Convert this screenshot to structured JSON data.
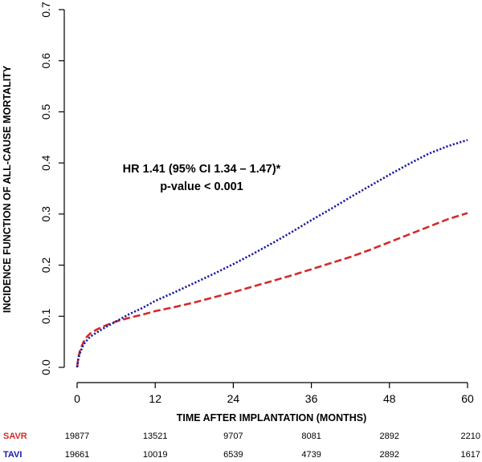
{
  "chart_data": {
    "type": "line",
    "title": "",
    "xlabel": "TIME AFTER IMPLANTATION (MONTHS)",
    "ylabel": "INCIDENCE FUNCTION OF ALL-CAUSE MORTALITY",
    "xlim": [
      0,
      60
    ],
    "ylim": [
      0,
      0.7
    ],
    "x_ticks": [
      0,
      12,
      24,
      36,
      48,
      60
    ],
    "x_tick_labels": [
      "0",
      "12",
      "24",
      "36",
      "48",
      "60"
    ],
    "y_ticks": [
      0,
      0.1,
      0.2,
      0.3,
      0.4,
      0.5,
      0.6,
      0.7
    ],
    "y_tick_labels": [
      "0.0",
      "0.1",
      "0.2",
      "0.3",
      "0.4",
      "0.5",
      "0.6",
      "0.7"
    ],
    "grid": false,
    "annotation": [
      "HR 1.41 (95% CI 1.34 – 1.47)*",
      "p-value < 0.001"
    ],
    "series": [
      {
        "name": "SAVR",
        "color": "#d42a2a",
        "style": "dashed",
        "x": [
          0,
          0.2,
          0.5,
          1,
          1.5,
          2,
          3,
          4,
          5,
          6,
          8,
          10,
          12,
          15,
          18,
          21,
          24,
          27,
          30,
          33,
          36,
          39,
          42,
          45,
          48,
          51,
          54,
          57,
          60
        ],
        "y": [
          0,
          0.02,
          0.035,
          0.05,
          0.06,
          0.066,
          0.074,
          0.08,
          0.085,
          0.09,
          0.097,
          0.103,
          0.11,
          0.118,
          0.127,
          0.137,
          0.147,
          0.158,
          0.169,
          0.18,
          0.192,
          0.204,
          0.216,
          0.23,
          0.245,
          0.26,
          0.275,
          0.29,
          0.302
        ]
      },
      {
        "name": "TAVI",
        "color": "#1a1aa8",
        "style": "dotted",
        "x": [
          0,
          0.2,
          0.5,
          1,
          1.5,
          2,
          3,
          4,
          5,
          6,
          8,
          10,
          12,
          15,
          18,
          21,
          24,
          27,
          30,
          33,
          36,
          39,
          42,
          45,
          48,
          51,
          54,
          57,
          60
        ],
        "y": [
          0,
          0.018,
          0.03,
          0.045,
          0.053,
          0.06,
          0.068,
          0.076,
          0.083,
          0.09,
          0.104,
          0.116,
          0.13,
          0.147,
          0.165,
          0.183,
          0.202,
          0.222,
          0.243,
          0.265,
          0.288,
          0.31,
          0.333,
          0.355,
          0.377,
          0.398,
          0.418,
          0.433,
          0.445
        ]
      }
    ],
    "risk_table": {
      "times": [
        0,
        12,
        24,
        36,
        48,
        60
      ],
      "rows": [
        {
          "name": "SAVR",
          "color": "#d42a2a",
          "values": [
            "19877",
            "13521",
            "9707",
            "8081",
            "2892",
            "2210"
          ]
        },
        {
          "name": "TAVI",
          "color": "#1a1aa8",
          "values": [
            "19661",
            "10019",
            "6539",
            "4739",
            "2892",
            "1617"
          ]
        }
      ]
    }
  }
}
